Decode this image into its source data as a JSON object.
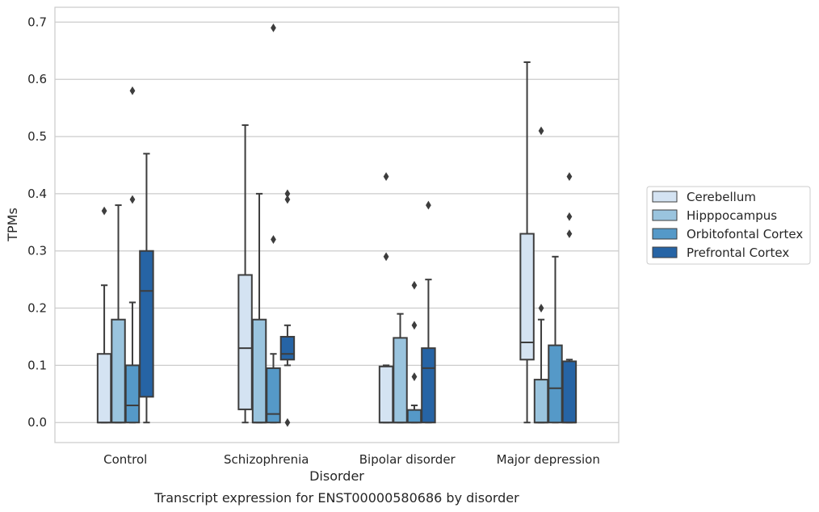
{
  "caption": "Transcript expression for ENST00000580686 by disorder",
  "chart_data": {
    "type": "box",
    "title": "",
    "xlabel": "Disorder",
    "ylabel": "TPMs",
    "ylim": [
      -0.035,
      0.726
    ],
    "yticks": [
      0.0,
      0.1,
      0.2,
      0.3,
      0.4,
      0.5,
      0.6,
      0.7
    ],
    "ytick_labels": [
      "0.0",
      "0.1",
      "0.2",
      "0.3",
      "0.4",
      "0.5",
      "0.6",
      "0.7"
    ],
    "grid": "horizontal",
    "legend_position": "right",
    "categories": [
      "Control",
      "Schizophrenia",
      "Bipolar disorder",
      "Major depression"
    ],
    "series": [
      {
        "name": "Cerebellum",
        "color": "#d4e3f2",
        "boxes": [
          {
            "whislo": 0.0,
            "q1": 0.0,
            "med": 0.0,
            "q3": 0.12,
            "whishi": 0.24,
            "fliers": [
              0.37
            ]
          },
          {
            "whislo": 0.0,
            "q1": 0.023,
            "med": 0.13,
            "q3": 0.258,
            "whishi": 0.52,
            "fliers": []
          },
          {
            "whislo": 0.0,
            "q1": 0.0,
            "med": 0.0,
            "q3": 0.098,
            "whishi": 0.1,
            "fliers": [
              0.29,
              0.43
            ]
          },
          {
            "whislo": 0.0,
            "q1": 0.11,
            "med": 0.14,
            "q3": 0.33,
            "whishi": 0.63,
            "fliers": []
          }
        ]
      },
      {
        "name": "Hipppocampus",
        "color": "#9ac4de",
        "boxes": [
          {
            "whislo": 0.0,
            "q1": 0.0,
            "med": 0.0,
            "q3": 0.18,
            "whishi": 0.38,
            "fliers": []
          },
          {
            "whislo": 0.0,
            "q1": 0.0,
            "med": 0.0,
            "q3": 0.18,
            "whishi": 0.4,
            "fliers": []
          },
          {
            "whislo": 0.0,
            "q1": 0.0,
            "med": 0.0,
            "q3": 0.148,
            "whishi": 0.19,
            "fliers": []
          },
          {
            "whislo": 0.0,
            "q1": 0.0,
            "med": 0.0,
            "q3": 0.075,
            "whishi": 0.18,
            "fliers": [
              0.2,
              0.51
            ]
          }
        ]
      },
      {
        "name": "Orbitofontal Cortex",
        "color": "#5599c8",
        "boxes": [
          {
            "whislo": 0.0,
            "q1": 0.0,
            "med": 0.03,
            "q3": 0.1,
            "whishi": 0.21,
            "fliers": [
              0.39,
              0.58
            ]
          },
          {
            "whislo": 0.0,
            "q1": 0.0,
            "med": 0.015,
            "q3": 0.095,
            "whishi": 0.12,
            "fliers": [
              0.32,
              0.69
            ]
          },
          {
            "whislo": 0.0,
            "q1": 0.0,
            "med": 0.0,
            "q3": 0.022,
            "whishi": 0.03,
            "fliers": [
              0.08,
              0.17,
              0.24
            ]
          },
          {
            "whislo": 0.0,
            "q1": 0.0,
            "med": 0.06,
            "q3": 0.135,
            "whishi": 0.29,
            "fliers": []
          }
        ]
      },
      {
        "name": "Prefrontal Cortex",
        "color": "#2664a5",
        "boxes": [
          {
            "whislo": 0.0,
            "q1": 0.045,
            "med": 0.23,
            "q3": 0.3,
            "whishi": 0.47,
            "fliers": []
          },
          {
            "whislo": 0.1,
            "q1": 0.11,
            "med": 0.12,
            "q3": 0.15,
            "whishi": 0.17,
            "fliers": [
              0.0,
              0.39,
              0.4
            ]
          },
          {
            "whislo": 0.0,
            "q1": 0.0,
            "med": 0.095,
            "q3": 0.13,
            "whishi": 0.25,
            "fliers": [
              0.38
            ]
          },
          {
            "whislo": 0.0,
            "q1": 0.0,
            "med": 0.0,
            "q3": 0.107,
            "whishi": 0.11,
            "fliers": [
              0.33,
              0.36,
              0.43
            ]
          }
        ]
      }
    ]
  }
}
